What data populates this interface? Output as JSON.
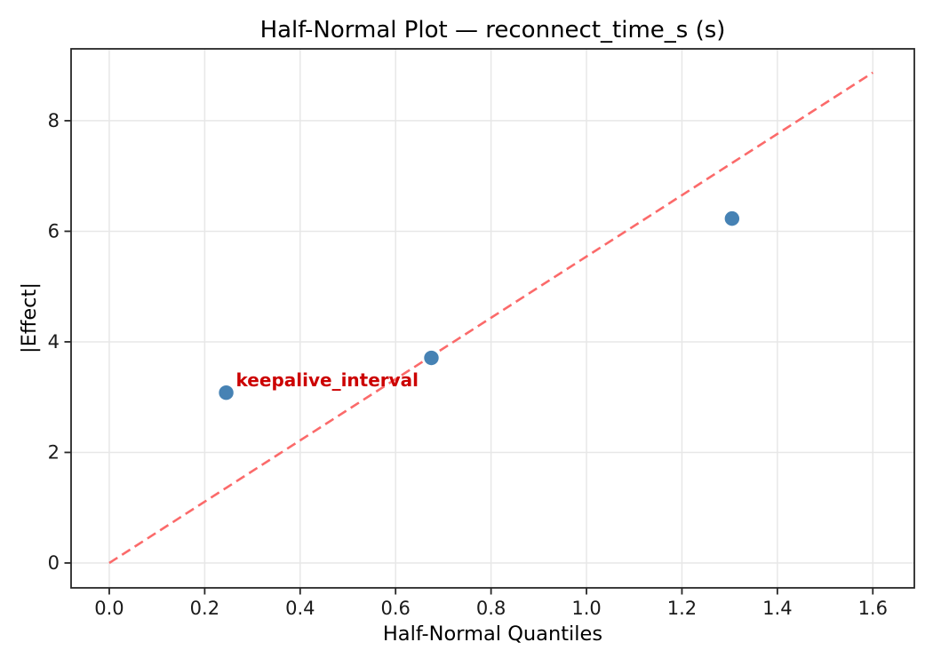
{
  "chart_data": {
    "type": "scatter",
    "title": "Half-Normal Plot — reconnect_time_s (s)",
    "xlabel": "Half-Normal Quantiles",
    "ylabel": "|Effect|",
    "xlim": [
      -0.08,
      1.687
    ],
    "ylim": [
      -0.45,
      9.3
    ],
    "xtick_values": [
      0.0,
      0.2,
      0.4,
      0.6,
      0.8,
      1.0,
      1.2,
      1.4,
      1.6
    ],
    "xtick_labels": [
      "0.0",
      "0.2",
      "0.4",
      "0.6",
      "0.8",
      "1.0",
      "1.2",
      "1.4",
      "1.6"
    ],
    "ytick_values": [
      0,
      2,
      4,
      6,
      8
    ],
    "ytick_labels": [
      "0",
      "2",
      "4",
      "6",
      "8"
    ],
    "grid": true,
    "legend": "none",
    "points": {
      "x": [
        0.245,
        0.675,
        1.305
      ],
      "y": [
        3.08,
        3.71,
        6.23
      ],
      "color": "#4682b4"
    },
    "reference_line": {
      "x": [
        0.0,
        1.6
      ],
      "y": [
        0.0,
        8.87
      ],
      "style": "dashed",
      "color": "#fb6a6a"
    },
    "annotation": {
      "text": "keepalive_interval",
      "x": 0.245,
      "y": 3.08,
      "color": "#cc0000"
    },
    "colors": {
      "grid": "#e7e7e7",
      "spine": "#262626",
      "tick_text": "#1a1a1a",
      "background": "#ffffff"
    }
  }
}
